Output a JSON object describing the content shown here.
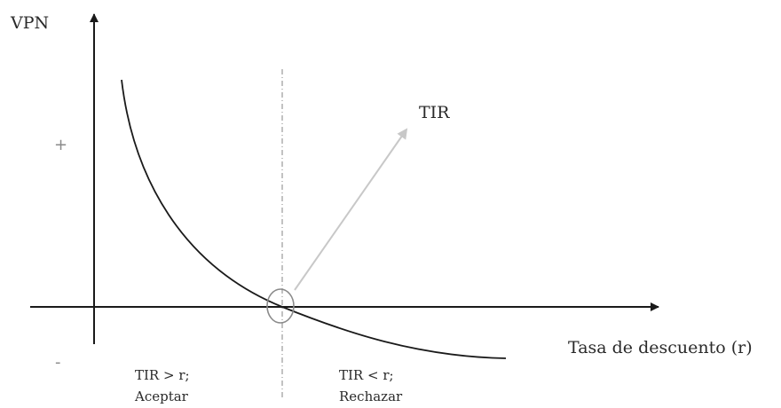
{
  "y_axis_label": "VPN",
  "x_axis_label": "Tasa de descuento (r)",
  "plus_sign": "+",
  "minus_sign": "-",
  "arrow_label": "TIR",
  "left_region": {
    "line1": "TIR > r;",
    "line2": "Aceptar"
  },
  "right_region": {
    "line1": "TIR < r;",
    "line2": "Rechazar"
  },
  "colors": {
    "axes": "#1a1a1a",
    "curve": "#1a1a1a",
    "arrow": "#c8c8c8",
    "marker": "#8a8a8a",
    "dashed": "#999999"
  }
}
